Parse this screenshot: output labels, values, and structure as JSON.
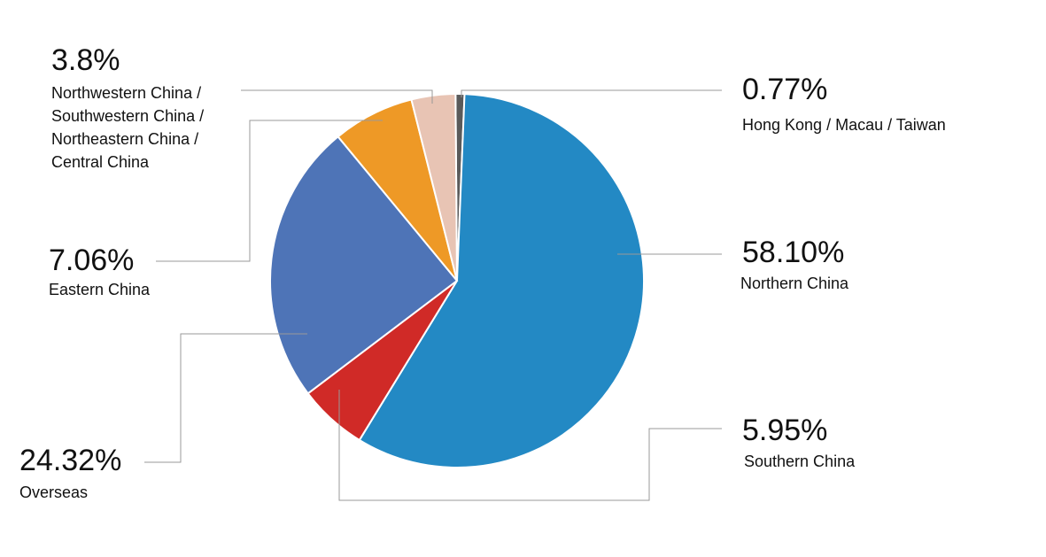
{
  "chart_data": {
    "type": "pie",
    "categories": [
      "Hong Kong / Macau / Taiwan",
      "Northern China",
      "Southern China",
      "Overseas",
      "Eastern China",
      "Northwestern China / Southwestern China / Northeastern China / Central China"
    ],
    "values": [
      0.77,
      58.1,
      5.95,
      24.32,
      7.06,
      3.8
    ],
    "value_labels": [
      "0.77%",
      "58.10%",
      "5.95%",
      "24.32%",
      "7.06%",
      "3.8%"
    ],
    "colors": [
      "#5a5a5a",
      "#2389c4",
      "#d02a27",
      "#4e74b7",
      "#ee9926",
      "#e8c4b4"
    ]
  }
}
